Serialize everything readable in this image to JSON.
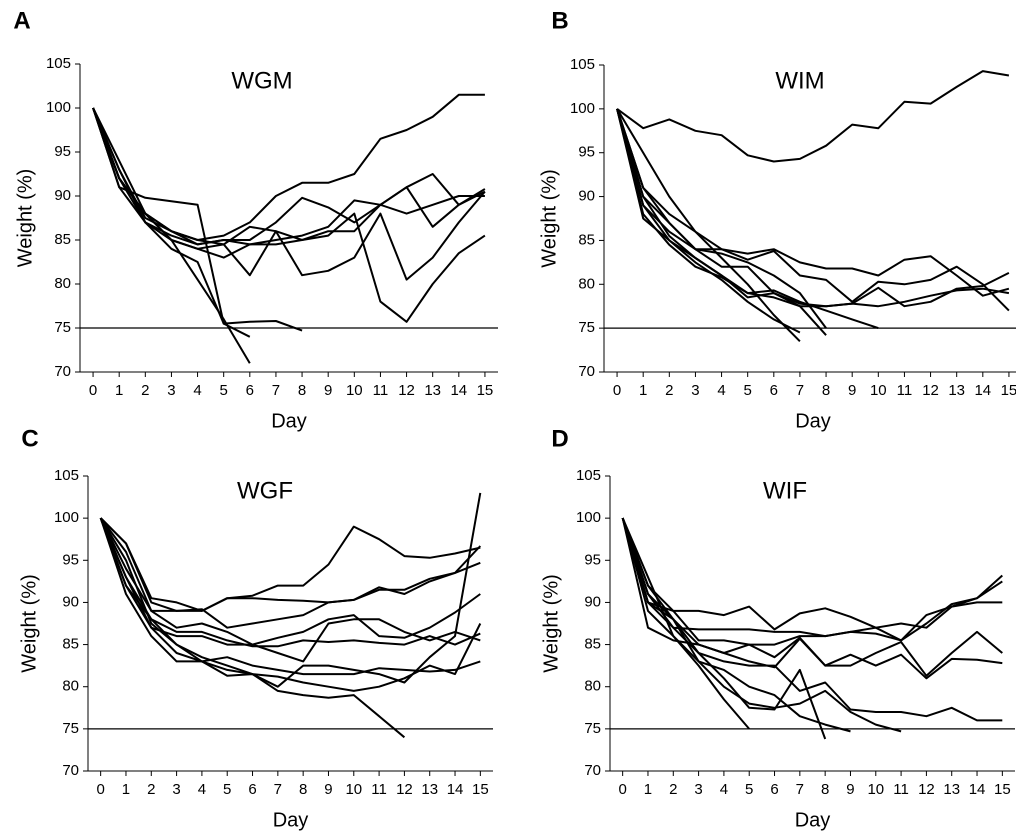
{
  "chart_data": [
    {
      "type": "line",
      "label": "A",
      "title": "WGM",
      "xlabel": "Day",
      "ylabel": "Weight (%)",
      "x": [
        0,
        1,
        2,
        3,
        4,
        5,
        6,
        7,
        8,
        9,
        10,
        11,
        12,
        13,
        14,
        15
      ],
      "xlim": [
        -0.5,
        15.5
      ],
      "xticks": [
        0,
        1,
        2,
        3,
        4,
        5,
        6,
        7,
        8,
        9,
        10,
        11,
        12,
        13,
        14,
        15
      ],
      "ylim": [
        70,
        105
      ],
      "yticks": [
        70,
        75,
        80,
        85,
        90,
        95,
        100,
        105
      ],
      "hline": 75,
      "color": "#000000",
      "series": [
        {
          "values": [
            100,
            93,
            87.5,
            86,
            85,
            85.5,
            87,
            90,
            91.5,
            91.5,
            92.5,
            96.5,
            97.5,
            99,
            101.5,
            101.5
          ]
        },
        {
          "values": [
            100,
            91,
            89.8,
            89.4,
            89,
            75.5,
            75.7,
            75.8,
            74.7,
            null,
            null,
            null,
            null,
            null,
            null,
            null
          ]
        },
        {
          "values": [
            100,
            93,
            87,
            84,
            82.5,
            75.5,
            74,
            null,
            null,
            null,
            null,
            null,
            null,
            null,
            null,
            null
          ]
        },
        {
          "values": [
            100,
            94,
            88,
            85,
            80.5,
            76,
            71,
            null,
            null,
            null,
            null,
            null,
            null,
            null,
            null,
            null
          ]
        },
        {
          "values": [
            100,
            92,
            87,
            85.5,
            84.5,
            85,
            84.5,
            84.5,
            85,
            85.5,
            88,
            78,
            75.7,
            80,
            83.5,
            85.5
          ]
        },
        {
          "values": [
            100,
            92,
            88,
            86,
            85,
            84.5,
            81,
            86,
            81,
            81.5,
            83,
            88,
            80.5,
            83,
            87,
            90.5
          ]
        },
        {
          "values": [
            100,
            92,
            88,
            86,
            84.5,
            85,
            85,
            87,
            89.8,
            88.7,
            87,
            89,
            91,
            92.5,
            89,
            90.8
          ]
        },
        {
          "values": [
            100,
            91,
            87,
            85,
            84,
            83,
            84.5,
            85,
            85.5,
            86.5,
            89.5,
            89,
            88,
            89,
            90,
            90
          ]
        },
        {
          "values": [
            100,
            92,
            88,
            85,
            84,
            84.5,
            86.5,
            86,
            85,
            86,
            86,
            89,
            91,
            86.5,
            89,
            90.5
          ]
        }
      ]
    },
    {
      "type": "line",
      "label": "B",
      "title": "WIM",
      "xlabel": "Day",
      "ylabel": "Weight (%)",
      "x": [
        0,
        1,
        2,
        3,
        4,
        5,
        6,
        7,
        8,
        9,
        10,
        11,
        12,
        13,
        14,
        15
      ],
      "xlim": [
        -0.5,
        15.5
      ],
      "xticks": [
        0,
        1,
        2,
        3,
        4,
        5,
        6,
        7,
        8,
        9,
        10,
        11,
        12,
        13,
        14,
        15
      ],
      "ylim": [
        70,
        105
      ],
      "yticks": [
        70,
        75,
        80,
        85,
        90,
        95,
        100,
        105
      ],
      "hline": 75,
      "color": "#000000",
      "series": [
        {
          "values": [
            100,
            97.8,
            98.8,
            97.5,
            97,
            94.7,
            94,
            94.3,
            95.8,
            98.2,
            97.8,
            100.8,
            100.6,
            102.5,
            104.3,
            103.8
          ]
        },
        {
          "values": [
            100,
            91,
            88,
            86,
            84,
            83.5,
            84,
            82.5,
            81.8,
            81.8,
            81,
            82.8,
            83.2,
            81,
            78.7,
            79.5
          ]
        },
        {
          "values": [
            100,
            90,
            87,
            84,
            84,
            82.8,
            83.8,
            81,
            80.5,
            78,
            80.3,
            80,
            80.5,
            82,
            80,
            77
          ]
        },
        {
          "values": [
            100,
            89,
            85,
            83,
            81,
            78.5,
            79,
            77.8,
            77.5,
            77.8,
            77.5,
            78,
            78.7,
            79.3,
            79.5,
            79
          ]
        },
        {
          "values": [
            100,
            88,
            84.5,
            82,
            80.8,
            79,
            78.5,
            77.5,
            77.5,
            77.8,
            79.6,
            77.5,
            78,
            79.5,
            79.8,
            81.3
          ]
        },
        {
          "values": [
            100,
            90,
            85.5,
            83,
            81,
            79,
            79.3,
            78,
            77,
            76,
            75,
            null,
            null,
            null,
            null,
            null
          ]
        },
        {
          "values": [
            100,
            95,
            90,
            86,
            83,
            80,
            76.5,
            73.5,
            null,
            null,
            null,
            null,
            null,
            null,
            null,
            null
          ]
        },
        {
          "values": [
            100,
            87.5,
            85,
            82.5,
            80.5,
            78,
            76,
            74.5,
            null,
            null,
            null,
            null,
            null,
            null,
            null,
            null
          ]
        },
        {
          "values": [
            100,
            89,
            86,
            84,
            82,
            82,
            79,
            77.5,
            74.2,
            null,
            null,
            null,
            null,
            null,
            null,
            null
          ]
        },
        {
          "values": [
            100,
            91,
            87,
            84,
            83.5,
            82.5,
            81,
            79,
            75,
            null,
            null,
            null,
            null,
            null,
            null,
            null
          ]
        }
      ]
    },
    {
      "type": "line",
      "label": "C",
      "title": "WGF",
      "xlabel": "Day",
      "ylabel": "Weight (%)",
      "x": [
        0,
        1,
        2,
        3,
        4,
        5,
        6,
        7,
        8,
        9,
        10,
        11,
        12,
        13,
        14,
        15
      ],
      "xlim": [
        -0.5,
        15.5
      ],
      "xticks": [
        0,
        1,
        2,
        3,
        4,
        5,
        6,
        7,
        8,
        9,
        10,
        11,
        12,
        13,
        14,
        15
      ],
      "ylim": [
        70,
        105
      ],
      "yticks": [
        70,
        75,
        80,
        85,
        90,
        95,
        100,
        105
      ],
      "hline": 75,
      "color": "#000000",
      "series": [
        {
          "values": [
            100,
            97,
            90,
            89,
            89,
            90.5,
            90.8,
            92,
            92,
            94.5,
            99,
            97.5,
            95.5,
            95.3,
            95.8,
            96.5
          ]
        },
        {
          "values": [
            100,
            97,
            90.5,
            90,
            89,
            90.5,
            90.5,
            90.3,
            90.2,
            90,
            90.3,
            91.5,
            91.5,
            92.8,
            93.5,
            96.7
          ]
        },
        {
          "values": [
            100,
            96,
            89,
            89,
            89.2,
            87,
            87.5,
            88,
            88.5,
            90,
            90.3,
            91.8,
            91,
            92.5,
            93.5,
            94.7
          ]
        },
        {
          "values": [
            100,
            94,
            89,
            87,
            87.5,
            86.5,
            85,
            85.8,
            86.5,
            88,
            88.5,
            86,
            85.8,
            87,
            88.8,
            91
          ]
        },
        {
          "values": [
            100,
            93,
            88,
            86.5,
            86.5,
            85.5,
            84.8,
            84.8,
            85.5,
            85.3,
            85.5,
            85.2,
            85,
            86,
            85,
            86.3
          ]
        },
        {
          "values": [
            100,
            92,
            87,
            86,
            86,
            85,
            85,
            84,
            83,
            87.5,
            88,
            88,
            86.5,
            85.5,
            86.5,
            85.5
          ]
        },
        {
          "values": [
            100,
            91,
            86,
            83,
            83,
            83.5,
            82.5,
            82,
            81.5,
            81.5,
            81.5,
            82.2,
            82,
            81.8,
            82,
            83
          ]
        },
        {
          "values": [
            100,
            92,
            88,
            85,
            83,
            81.3,
            81.5,
            80,
            82.5,
            82.5,
            82,
            81.5,
            80.5,
            83.5,
            86,
            103
          ]
        },
        {
          "values": [
            100,
            93,
            87,
            84,
            83,
            82,
            81.5,
            79.5,
            79,
            78.7,
            79,
            76.5,
            74,
            null,
            null,
            null
          ]
        },
        {
          "values": [
            100,
            95,
            87.5,
            85,
            83.5,
            82.5,
            81.5,
            81.2,
            80.5,
            80,
            79.5,
            80,
            81,
            82.5,
            81.5,
            87.5
          ]
        }
      ]
    },
    {
      "type": "line",
      "label": "D",
      "title": "WIF",
      "xlabel": "Day",
      "ylabel": "Weight (%)",
      "x": [
        0,
        1,
        2,
        3,
        4,
        5,
        6,
        7,
        8,
        9,
        10,
        11,
        12,
        13,
        14,
        15
      ],
      "xlim": [
        -0.5,
        15.5
      ],
      "xticks": [
        0,
        1,
        2,
        3,
        4,
        5,
        6,
        7,
        8,
        9,
        10,
        11,
        12,
        13,
        14,
        15
      ],
      "ylim": [
        70,
        105
      ],
      "yticks": [
        70,
        75,
        80,
        85,
        90,
        95,
        100,
        105
      ],
      "hline": 75,
      "color": "#000000",
      "series": [
        {
          "values": [
            100,
            92,
            89,
            89,
            88.5,
            89.5,
            86.8,
            88.7,
            89.3,
            88.3,
            87,
            87.5,
            87,
            89.5,
            90,
            90
          ]
        },
        {
          "values": [
            100,
            91,
            87,
            86.8,
            86.8,
            86.8,
            86.5,
            86.5,
            86,
            86.5,
            86.3,
            85.5,
            87.5,
            89.8,
            90.5,
            93.2
          ]
        },
        {
          "values": [
            100,
            90,
            89,
            85.5,
            85.5,
            85,
            85,
            86,
            86,
            86.5,
            87,
            85.5,
            88.5,
            89.5,
            90.5,
            92.5
          ]
        },
        {
          "values": [
            100,
            87,
            85.5,
            85,
            84,
            85,
            83.5,
            85.8,
            82.5,
            82.5,
            84,
            85.3,
            81.3,
            84,
            86.5,
            84
          ]
        },
        {
          "values": [
            100,
            90,
            88,
            85,
            84,
            83,
            82.3,
            85.7,
            82.5,
            83.8,
            82.5,
            83.8,
            81,
            83.3,
            83.2,
            82.8
          ]
        },
        {
          "values": [
            100,
            90,
            87,
            84,
            83,
            82.5,
            82.5,
            79.5,
            80.5,
            77.3,
            77,
            77,
            76.5,
            77.5,
            76,
            76
          ]
        },
        {
          "values": [
            100,
            91,
            88,
            84,
            81,
            77.5,
            77.3,
            82,
            73.8,
            null,
            null,
            null,
            null,
            null,
            null,
            null
          ]
        },
        {
          "values": [
            100,
            92,
            88,
            83,
            80,
            78,
            77.5,
            78,
            79.5,
            77,
            75.5,
            74.7,
            null,
            null,
            null,
            null
          ]
        },
        {
          "values": [
            100,
            93,
            86,
            82.5,
            78.5,
            75,
            null,
            null,
            null,
            null,
            null,
            null,
            null,
            null,
            null,
            null
          ]
        },
        {
          "values": [
            100,
            89,
            86,
            83,
            82,
            80,
            79,
            76.5,
            75.5,
            74.7,
            null,
            null,
            null,
            null,
            null,
            null
          ]
        }
      ]
    }
  ]
}
